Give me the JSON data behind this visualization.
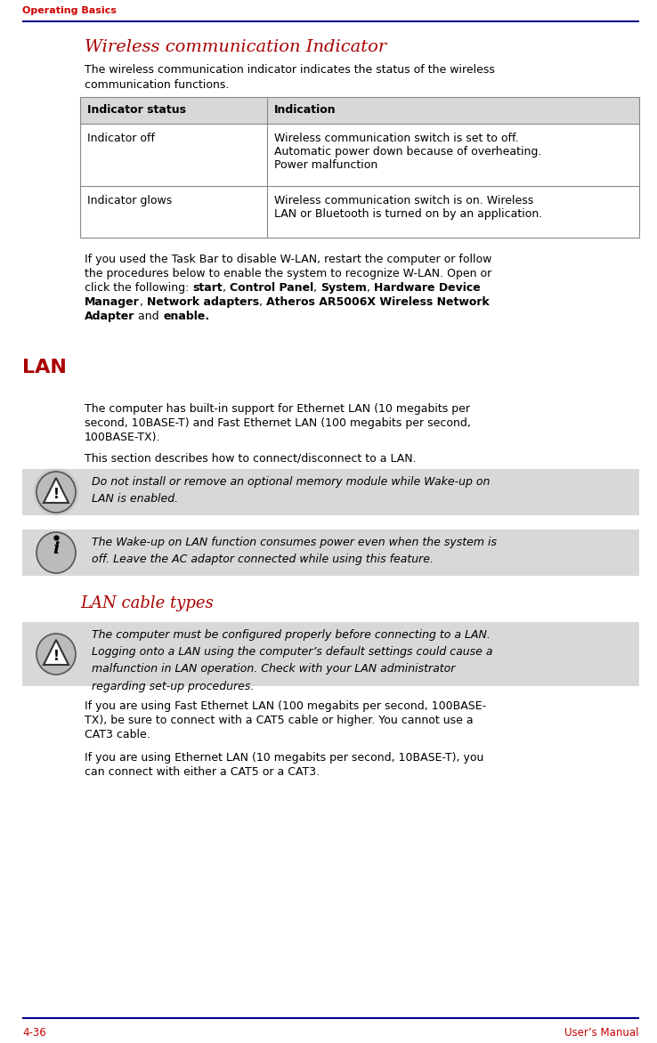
{
  "page_bg": "#ffffff",
  "header_text": "Operating Basics",
  "header_color": "#cc0000",
  "header_line_color": "#00008b",
  "footer_left": "4-36",
  "footer_right": "User’s Manual",
  "footer_color": "#cc0000",
  "footer_line_color": "#00008b",
  "section1_title": "Wireless communication Indicator",
  "section1_title_color": "#aa0000",
  "section2_title": "LAN",
  "section3_title": "LAN cable types",
  "body_text_color": "#000000",
  "table_header_bg": "#d8d8d8",
  "table_border_color": "#888888",
  "warning_bg": "#d8d8d8",
  "info_bg": "#d8d8d8",
  "para1_line1": "The wireless communication indicator indicates the status of the wireless",
  "para1_line2": "communication functions.",
  "table_col1_header": "Indicator status",
  "table_col2_header": "Indication",
  "table_row1_col1": "Indicator off",
  "table_row1_col2_l1": "Wireless communication switch is set to off.",
  "table_row1_col2_l2": "Automatic power down because of overheating.",
  "table_row1_col2_l3": "Power malfunction",
  "table_row2_col1": "Indicator glows",
  "table_row2_col2_l1": "Wireless communication switch is on. Wireless",
  "table_row2_col2_l2": "LAN or Bluetooth is turned on by an application.",
  "after_table_lines": [
    [
      {
        "t": "If you used the Task Bar to disable W-LAN, restart the computer or follow",
        "b": false
      }
    ],
    [
      {
        "t": "the procedures below to enable the system to recognize W-LAN. Open or",
        "b": false
      }
    ],
    [
      {
        "t": "click the following: ",
        "b": false
      },
      {
        "t": "start",
        "b": true
      },
      {
        "t": ", ",
        "b": false
      },
      {
        "t": "Control Panel",
        "b": true
      },
      {
        "t": ", ",
        "b": false
      },
      {
        "t": "System",
        "b": true
      },
      {
        "t": ", ",
        "b": false
      },
      {
        "t": "Hardware Device",
        "b": true
      }
    ],
    [
      {
        "t": "Manager",
        "b": true
      },
      {
        "t": ", ",
        "b": false
      },
      {
        "t": "Network adapters",
        "b": true
      },
      {
        "t": ", ",
        "b": false
      },
      {
        "t": "Atheros AR5006X Wireless Network",
        "b": true
      }
    ],
    [
      {
        "t": "Adapter",
        "b": true
      },
      {
        "t": " and ",
        "b": false
      },
      {
        "t": "enable.",
        "b": true
      }
    ]
  ],
  "lan_para1_l1": "The computer has built-in support for Ethernet LAN (10 megabits per",
  "lan_para1_l2": "second, 10BASE-T) and Fast Ethernet LAN (100 megabits per second,",
  "lan_para1_l3": "100BASE-TX).",
  "lan_para2": "This section describes how to connect/disconnect to a LAN.",
  "warning1_l1": "Do not install or remove an optional memory module while Wake-up on",
  "warning1_l2": "LAN is enabled.",
  "info1_l1": "The Wake-up on LAN function consumes power even when the system is",
  "info1_l2": "off. Leave the AC adaptor connected while using this feature.",
  "cable_note_l1": "The computer must be configured properly before connecting to a LAN.",
  "cable_note_l2": "Logging onto a LAN using the computer’s default settings could cause a",
  "cable_note_l3": "malfunction in LAN operation. Check with your LAN administrator",
  "cable_note_l4": "regarding set-up procedures.",
  "cable_para1_l1": "If you are using Fast Ethernet LAN (100 megabits per second, 100BASE-",
  "cable_para1_l2": "TX), be sure to connect with a CAT5 cable or higher. You cannot use a",
  "cable_para1_l3": "CAT3 cable.",
  "cable_para2_l1": "If you are using Ethernet LAN (10 megabits per second, 10BASE-T), you",
  "cable_para2_l2": "can connect with either a CAT5 or a CAT3."
}
